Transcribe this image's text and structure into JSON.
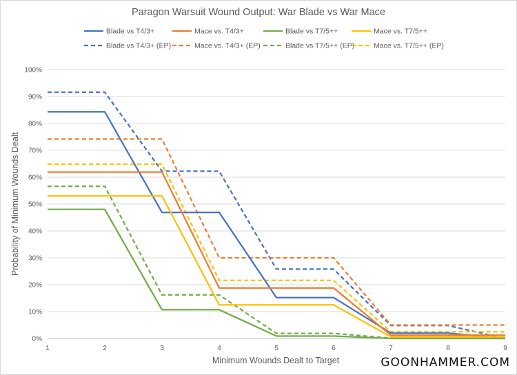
{
  "chart_data": {
    "type": "line",
    "title": "Paragon Warsuit Wound Output: War Blade vs War Mace",
    "xlabel": "Minimum Wounds Dealt to Target",
    "ylabel": "Probability of Minimum Wounds Dealt",
    "x": [
      1,
      2,
      3,
      4,
      5,
      6,
      7,
      8,
      9
    ],
    "xlim": [
      1,
      9
    ],
    "ylim": [
      0,
      1
    ],
    "yticks": [
      "0%",
      "10%",
      "20%",
      "30%",
      "40%",
      "50%",
      "60%",
      "70%",
      "80%",
      "90%",
      "100%"
    ],
    "grid": "horizontal",
    "legend_position": "top",
    "series": [
      {
        "name": "Blade vs T4/3+",
        "color": "#4472c4",
        "style": "solid",
        "values": [
          0.843,
          0.843,
          0.469,
          0.469,
          0.152,
          0.152,
          0.02,
          0.02,
          0.0
        ]
      },
      {
        "name": "Mace vs. T4/3+",
        "color": "#ed7d31",
        "style": "solid",
        "values": [
          0.619,
          0.619,
          0.619,
          0.188,
          0.188,
          0.188,
          0.012,
          0.012,
          0.012
        ]
      },
      {
        "name": "Blade vs T7/5++",
        "color": "#70ad47",
        "style": "solid",
        "values": [
          0.48,
          0.48,
          0.107,
          0.107,
          0.009,
          0.009,
          0.0,
          0.0,
          0.0
        ]
      },
      {
        "name": "Mace vs. T7/5++",
        "color": "#ffc000",
        "style": "solid",
        "values": [
          0.53,
          0.53,
          0.53,
          0.125,
          0.125,
          0.125,
          0.006,
          0.006,
          0.006
        ]
      },
      {
        "name": "Blade vs T4/3+ (EP)",
        "color": "#4472c4",
        "style": "dashed",
        "values": [
          0.916,
          0.916,
          0.622,
          0.622,
          0.258,
          0.258,
          0.048,
          0.048,
          0.0
        ]
      },
      {
        "name": "Mace vs. T4/3+ (EP)",
        "color": "#ed7d31",
        "style": "dashed",
        "values": [
          0.742,
          0.742,
          0.742,
          0.3,
          0.3,
          0.3,
          0.05,
          0.05,
          0.05
        ]
      },
      {
        "name": "Blade vs T7/5++ (EP)",
        "color": "#70ad47",
        "style": "dashed",
        "values": [
          0.566,
          0.566,
          0.162,
          0.162,
          0.019,
          0.019,
          0.001,
          0.001,
          0.0
        ]
      },
      {
        "name": "Mace vs. T7/5++ (EP)",
        "color": "#ffc000",
        "style": "dashed",
        "values": [
          0.648,
          0.648,
          0.648,
          0.216,
          0.216,
          0.216,
          0.025,
          0.025,
          0.025
        ]
      }
    ]
  },
  "watermark": "GOONHAMMER.COM",
  "colors": {
    "gridline": "#d9d9d9",
    "text": "#595959",
    "border": "#d9d9d9"
  }
}
